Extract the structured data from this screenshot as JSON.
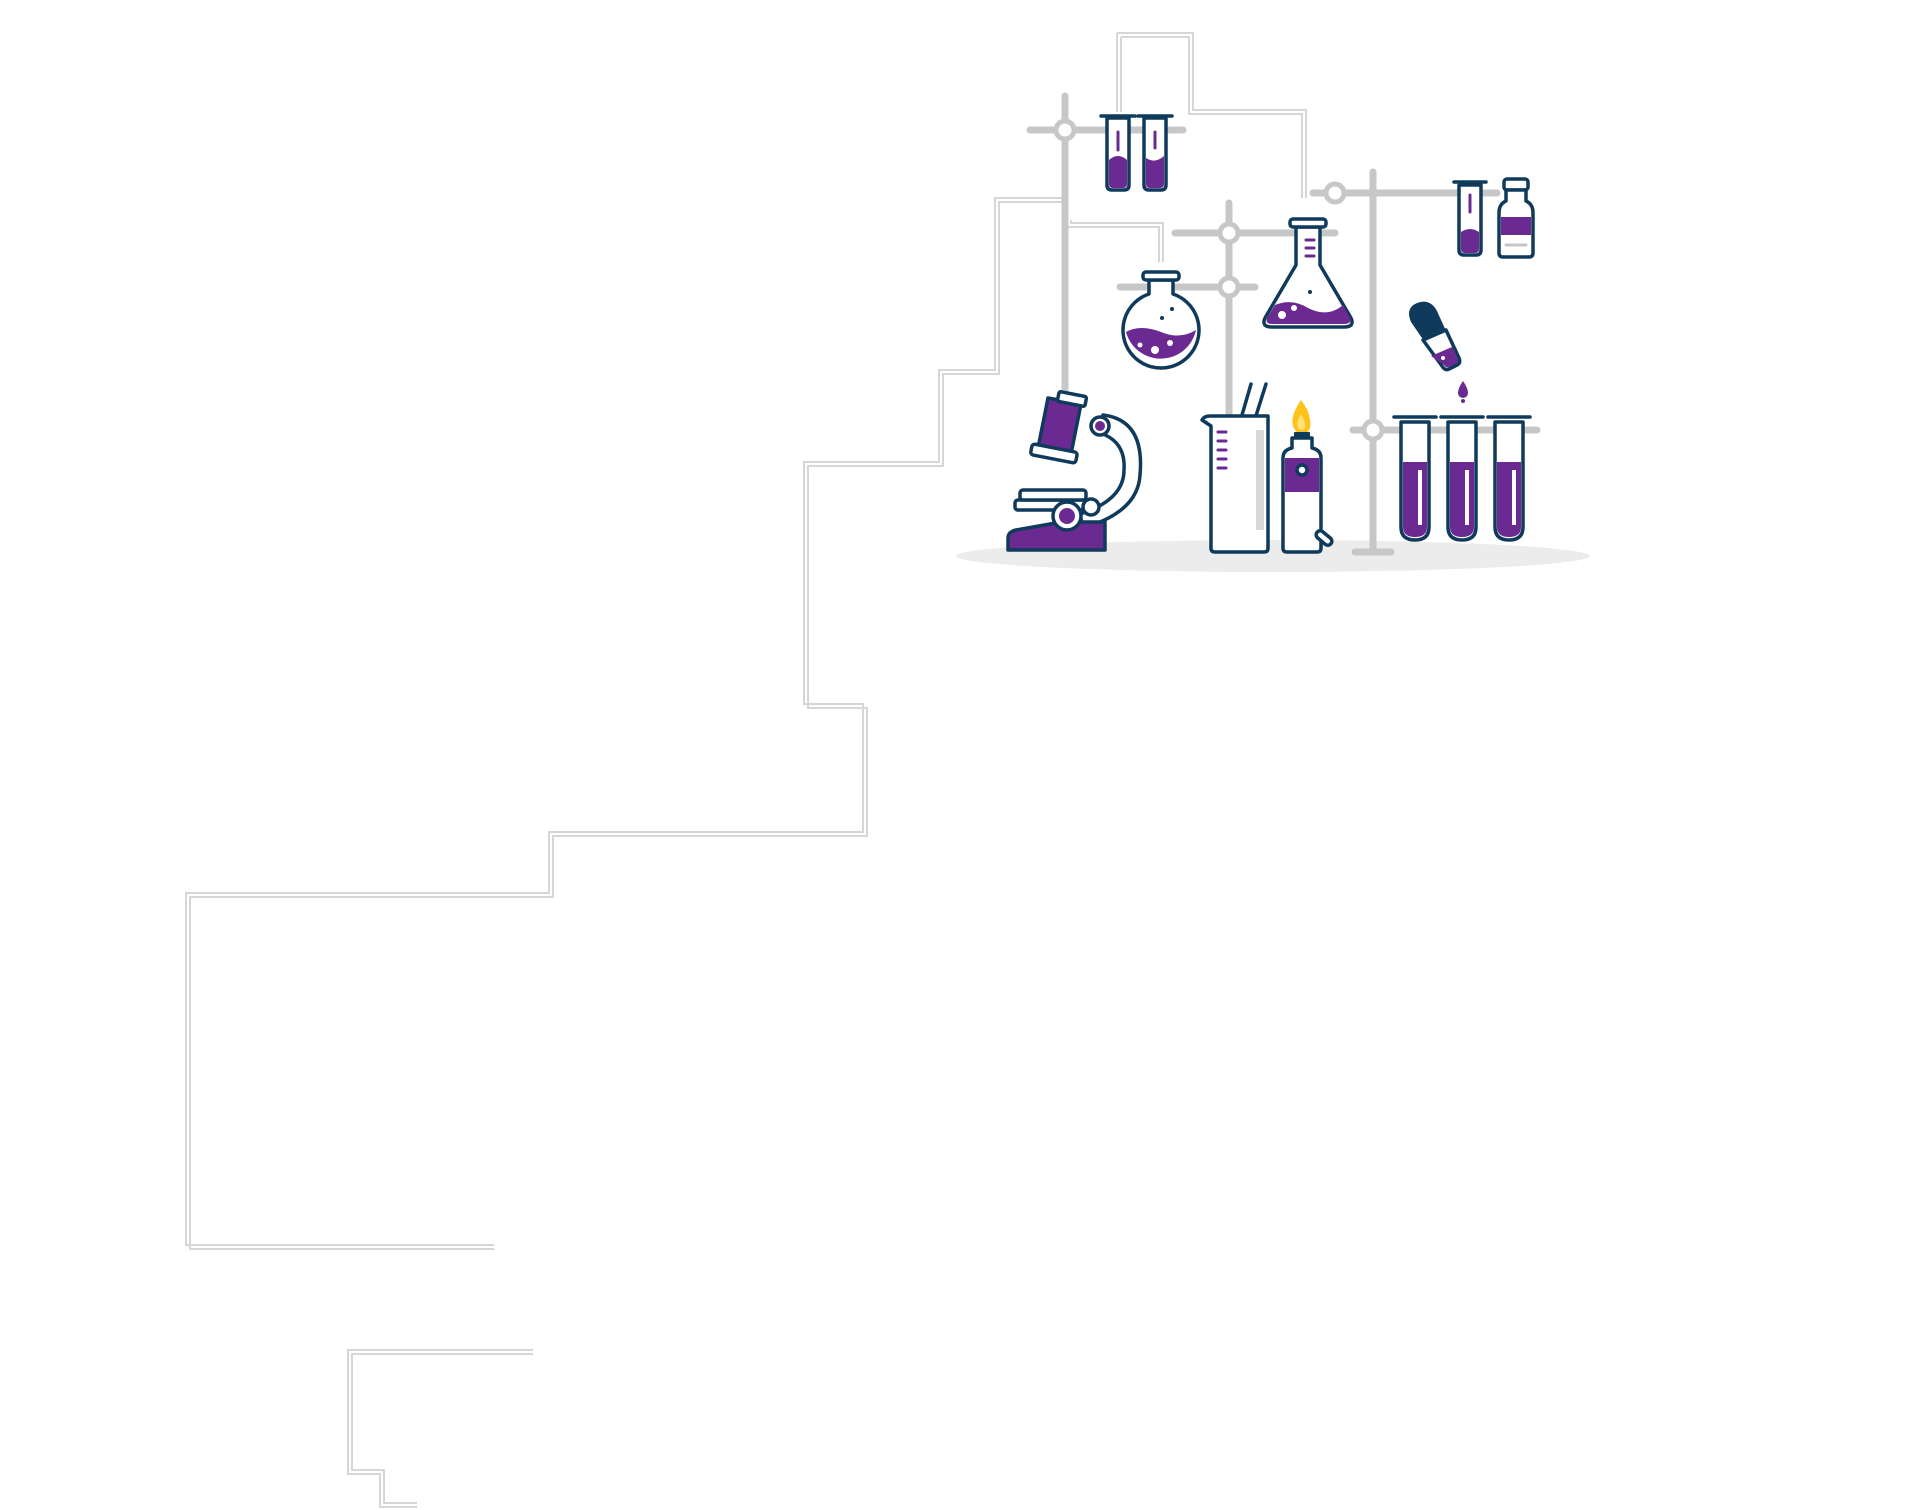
{
  "colors": {
    "background": "#ffffff",
    "pipe": "#d6d6d6",
    "stand": "#c7c7c7",
    "outline": "#0f3a5c",
    "liquid": "#6b2a91",
    "shadow": "#ececec",
    "flame": "#ffc21a"
  },
  "illustration": {
    "subject": "laboratory-equipment",
    "icons": [
      "lab-stand-icon",
      "test-tube-icon",
      "vial-icon",
      "round-bottom-flask-icon",
      "erlenmeyer-flask-icon",
      "dropper-icon",
      "microscope-icon",
      "beaker-icon",
      "burner-icon",
      "test-tube-rack-icon"
    ]
  }
}
